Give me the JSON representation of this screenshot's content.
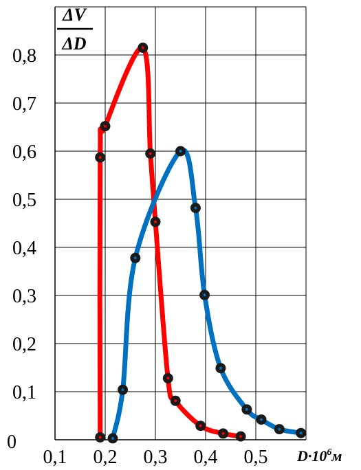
{
  "chart_data": {
    "type": "line",
    "ylabel_numerator": "ΔV",
    "ylabel_denominator": "ΔD",
    "xlabel": {
      "base": "D·10",
      "exp": "6",
      "unit": "м"
    },
    "xlim": [
      0.1,
      0.6
    ],
    "ylim": [
      0,
      0.82
    ],
    "x_ticks": [
      "0,1",
      "0,2",
      "0,3",
      "0,4",
      "0,5"
    ],
    "x_tick_values": [
      0.1,
      0.2,
      0.3,
      0.4,
      0.5
    ],
    "y_ticks": [
      "0",
      "0,1",
      "0,2",
      "0,3",
      "0,4",
      "0,5",
      "0,6",
      "0,7",
      "0,8"
    ],
    "y_tick_values": [
      0,
      0.1,
      0.2,
      0.3,
      0.4,
      0.5,
      0.6,
      0.7,
      0.8
    ],
    "grid": true,
    "series": [
      {
        "color": "#ff0000",
        "x": [
          0.19,
          0.19,
          0.2,
          0.275,
          0.29,
          0.3,
          0.325,
          0.34,
          0.39,
          0.435,
          0.47
        ],
        "y": [
          0.005,
          0.587,
          0.652,
          0.815,
          0.595,
          0.453,
          0.128,
          0.081,
          0.029,
          0.013,
          0.007
        ]
      },
      {
        "color": "#0070c0",
        "x": [
          0.215,
          0.235,
          0.26,
          0.35,
          0.38,
          0.398,
          0.43,
          0.482,
          0.511,
          0.547,
          0.59
        ],
        "y": [
          0.003,
          0.104,
          0.378,
          0.6,
          0.482,
          0.301,
          0.149,
          0.063,
          0.042,
          0.022,
          0.014
        ]
      }
    ]
  }
}
